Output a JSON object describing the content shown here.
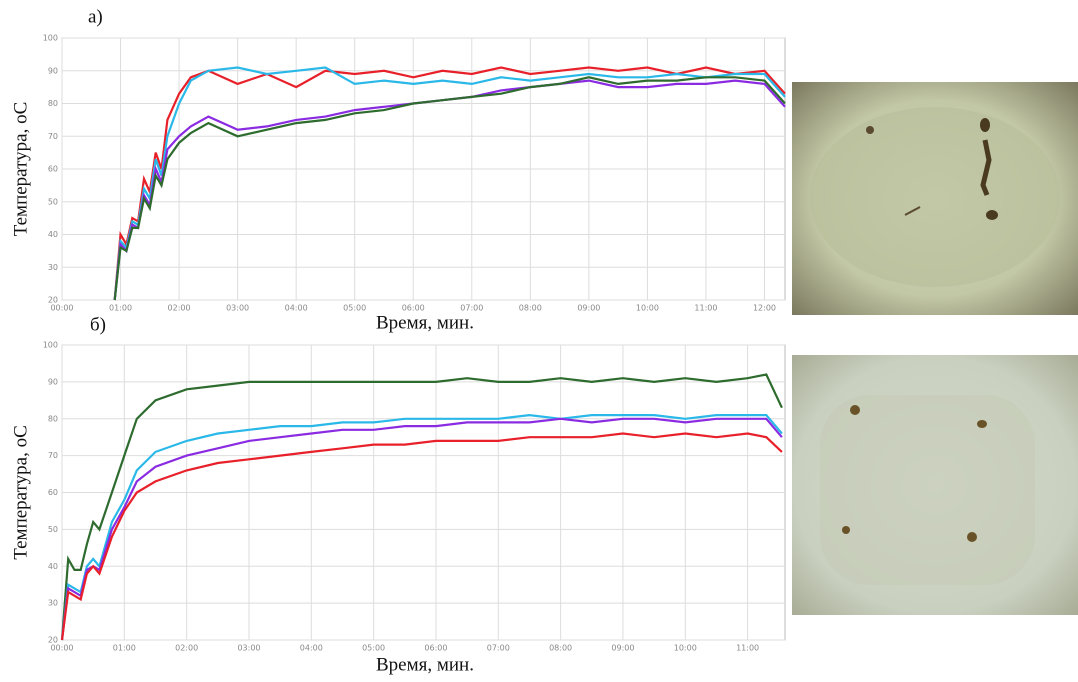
{
  "chart_data": [
    {
      "type": "line",
      "label": "а)",
      "ylabel": "Температура, оС",
      "xlabel": "Время, мин.",
      "x": [
        0.9,
        1.0,
        1.1,
        1.2,
        1.3,
        1.4,
        1.5,
        1.6,
        1.7,
        1.8,
        2.0,
        2.2,
        2.5,
        3.0,
        3.5,
        4.0,
        4.5,
        5.0,
        5.5,
        6.0,
        6.5,
        7.0,
        7.5,
        8.0,
        8.5,
        9.0,
        9.5,
        10.0,
        10.5,
        11.0,
        11.5,
        12.0,
        12.35
      ],
      "series": [
        {
          "color": "#e8202a",
          "values": [
            20,
            40,
            37,
            45,
            44,
            57,
            53,
            65,
            60,
            75,
            83,
            88,
            90,
            86,
            89,
            85,
            90,
            89,
            90,
            88,
            90,
            89,
            91,
            89,
            90,
            91,
            90,
            91,
            89,
            91,
            89,
            90,
            83
          ]
        },
        {
          "color": "#2ab8e8",
          "values": [
            20,
            38,
            36,
            44,
            43,
            54,
            51,
            63,
            58,
            70,
            80,
            87,
            90,
            91,
            89,
            90,
            91,
            86,
            87,
            86,
            87,
            86,
            88,
            87,
            88,
            89,
            88,
            88,
            89,
            88,
            89,
            89,
            82
          ]
        },
        {
          "color": "#8a2be2",
          "values": [
            20,
            37,
            35,
            43,
            42,
            52,
            49,
            60,
            56,
            66,
            70,
            73,
            76,
            72,
            73,
            75,
            76,
            78,
            79,
            80,
            81,
            82,
            84,
            85,
            86,
            87,
            85,
            85,
            86,
            86,
            87,
            86,
            79
          ]
        },
        {
          "color": "#2e6b2e",
          "values": [
            20,
            36,
            35,
            42,
            42,
            51,
            48,
            58,
            55,
            63,
            68,
            71,
            74,
            70,
            72,
            74,
            75,
            77,
            78,
            80,
            81,
            82,
            83,
            85,
            86,
            88,
            86,
            87,
            87,
            88,
            88,
            87,
            80
          ]
        }
      ],
      "xlim": [
        0,
        12.35
      ],
      "ylim": [
        20,
        100
      ],
      "xticks": [
        {
          "value": 0,
          "label": "00:00"
        },
        {
          "value": 1,
          "label": "01:00"
        },
        {
          "value": 2,
          "label": "02:00"
        },
        {
          "value": 3,
          "label": "03:00"
        },
        {
          "value": 4,
          "label": "04:00"
        },
        {
          "value": 5,
          "label": "05:00"
        },
        {
          "value": 6,
          "label": "06:00"
        },
        {
          "value": 7,
          "label": "07:00"
        },
        {
          "value": 8,
          "label": "08:00"
        },
        {
          "value": 9,
          "label": "09:00"
        },
        {
          "value": 10,
          "label": "10:00"
        },
        {
          "value": 11,
          "label": "11:00"
        },
        {
          "value": 12,
          "label": "12:00"
        }
      ],
      "yticks": [
        20,
        30,
        40,
        50,
        60,
        70,
        80,
        90,
        100
      ],
      "grid": true
    },
    {
      "type": "line",
      "label": "б)",
      "ylabel": "Температура, оС",
      "xlabel": "Время, мин.",
      "x": [
        0,
        0.1,
        0.2,
        0.3,
        0.4,
        0.5,
        0.6,
        0.8,
        1.0,
        1.2,
        1.5,
        2.0,
        2.5,
        3.0,
        3.5,
        4.0,
        4.5,
        5.0,
        5.5,
        6.0,
        6.5,
        7.0,
        7.5,
        8.0,
        8.5,
        9.0,
        9.5,
        10.0,
        10.5,
        11.0,
        11.3,
        11.55
      ],
      "series": [
        {
          "color": "#2e6b2e",
          "values": [
            20,
            42,
            39,
            39,
            46,
            52,
            50,
            60,
            70,
            80,
            85,
            88,
            89,
            90,
            90,
            90,
            90,
            90,
            90,
            90,
            91,
            90,
            90,
            91,
            90,
            91,
            90,
            91,
            90,
            91,
            92,
            83
          ]
        },
        {
          "color": "#2ab8e8",
          "values": [
            20,
            35,
            34,
            33,
            40,
            42,
            40,
            52,
            58,
            66,
            71,
            74,
            76,
            77,
            78,
            78,
            79,
            79,
            80,
            80,
            80,
            80,
            81,
            80,
            81,
            81,
            81,
            80,
            81,
            81,
            81,
            76
          ]
        },
        {
          "color": "#8a2be2",
          "values": [
            20,
            34,
            33,
            32,
            39,
            40,
            39,
            50,
            56,
            63,
            67,
            70,
            72,
            74,
            75,
            76,
            77,
            77,
            78,
            78,
            79,
            79,
            79,
            80,
            79,
            80,
            80,
            79,
            80,
            80,
            80,
            75
          ]
        },
        {
          "color": "#e8202a",
          "values": [
            20,
            33,
            32,
            31,
            38,
            40,
            38,
            48,
            55,
            60,
            63,
            66,
            68,
            69,
            70,
            71,
            72,
            73,
            73,
            74,
            74,
            74,
            75,
            75,
            75,
            76,
            75,
            76,
            75,
            76,
            75,
            71
          ]
        }
      ],
      "xlim": [
        0,
        11.6
      ],
      "ylim": [
        20,
        100
      ],
      "xticks": [
        {
          "value": 0,
          "label": "00:00"
        },
        {
          "value": 1,
          "label": "01:00"
        },
        {
          "value": 2,
          "label": "02:00"
        },
        {
          "value": 3,
          "label": "03:00"
        },
        {
          "value": 4,
          "label": "04:00"
        },
        {
          "value": 5,
          "label": "05:00"
        },
        {
          "value": 6,
          "label": "06:00"
        },
        {
          "value": 7,
          "label": "07:00"
        },
        {
          "value": 8,
          "label": "08:00"
        },
        {
          "value": 9,
          "label": "09:00"
        },
        {
          "value": 10,
          "label": "10:00"
        },
        {
          "value": 11,
          "label": "11:00"
        }
      ],
      "yticks": [
        20,
        30,
        40,
        50,
        60,
        70,
        80,
        90,
        100
      ],
      "grid": true
    }
  ]
}
